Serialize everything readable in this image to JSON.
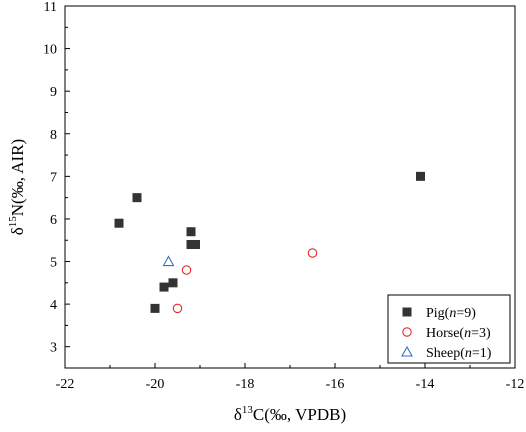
{
  "chart_data": {
    "type": "scatter",
    "xlim": [
      -22,
      -12
    ],
    "ylim": [
      2.5,
      11
    ],
    "x_ticks": [
      -22,
      -20,
      -18,
      -16,
      -14,
      -12
    ],
    "y_ticks": [
      3,
      4,
      5,
      6,
      7,
      8,
      9,
      10,
      11
    ],
    "x_tick_labels": [
      "-22",
      "-20",
      "-18",
      "-16",
      "-14",
      "-12"
    ],
    "y_tick_labels": [
      "3",
      "4",
      "5",
      "6",
      "7",
      "8",
      "9",
      "10",
      "11"
    ],
    "xlabel": {
      "prefix": "δ",
      "sup": "13",
      "rest": "C(‰, VPDB)"
    },
    "ylabel": {
      "prefix": "δ",
      "sup": "15",
      "rest": "N(‰, AIR)"
    },
    "grid": false,
    "legend_position": "bottom-right",
    "series": [
      {
        "name": "Pig(n=9)",
        "legend": {
          "label": "Pig(",
          "italic": "n",
          "rest": "=9)"
        },
        "marker": "filled-square",
        "color": "#333333",
        "points": [
          {
            "x": -20.8,
            "y": 5.9
          },
          {
            "x": -20.4,
            "y": 6.5
          },
          {
            "x": -20.0,
            "y": 3.9
          },
          {
            "x": -19.8,
            "y": 4.4
          },
          {
            "x": -19.6,
            "y": 4.5
          },
          {
            "x": -19.2,
            "y": 5.7
          },
          {
            "x": -19.2,
            "y": 5.4
          },
          {
            "x": -19.1,
            "y": 5.4
          },
          {
            "x": -14.1,
            "y": 7.0
          }
        ]
      },
      {
        "name": "Horse(n=3)",
        "legend": {
          "label": "Horse(",
          "italic": "n",
          "rest": "=3)"
        },
        "marker": "open-circle",
        "color": "#e02a2a",
        "points": [
          {
            "x": -19.3,
            "y": 4.8
          },
          {
            "x": -19.5,
            "y": 3.9
          },
          {
            "x": -16.5,
            "y": 5.2
          }
        ]
      },
      {
        "name": "Sheep(n=1)",
        "legend": {
          "label": "Sheep(",
          "italic": "n",
          "rest": "=1)"
        },
        "marker": "open-triangle",
        "color": "#3a6fc4",
        "points": [
          {
            "x": -19.7,
            "y": 5.0
          }
        ]
      }
    ]
  }
}
